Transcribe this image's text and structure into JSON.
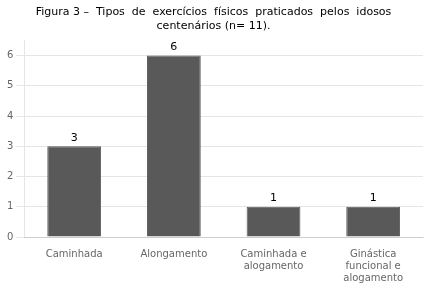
{
  "chart_data": {
    "type": "bar",
    "title": [
      "Figura 3 –  Tipos  de  exercícios  físicos  praticados  pelos  idosos",
      "centenários (n= 11)."
    ],
    "categories": [
      "Caminhada",
      "Alongamento",
      "Caminhada e\nalogamento",
      "Ginástica\nfuncional e\nalogamento"
    ],
    "values": [
      3,
      6,
      1,
      1
    ],
    "color": "#595959",
    "ylim": [
      0,
      6.5
    ],
    "yticks": [
      0,
      1,
      2,
      3,
      4,
      5,
      6
    ],
    "grid": true,
    "data_labels": true
  }
}
